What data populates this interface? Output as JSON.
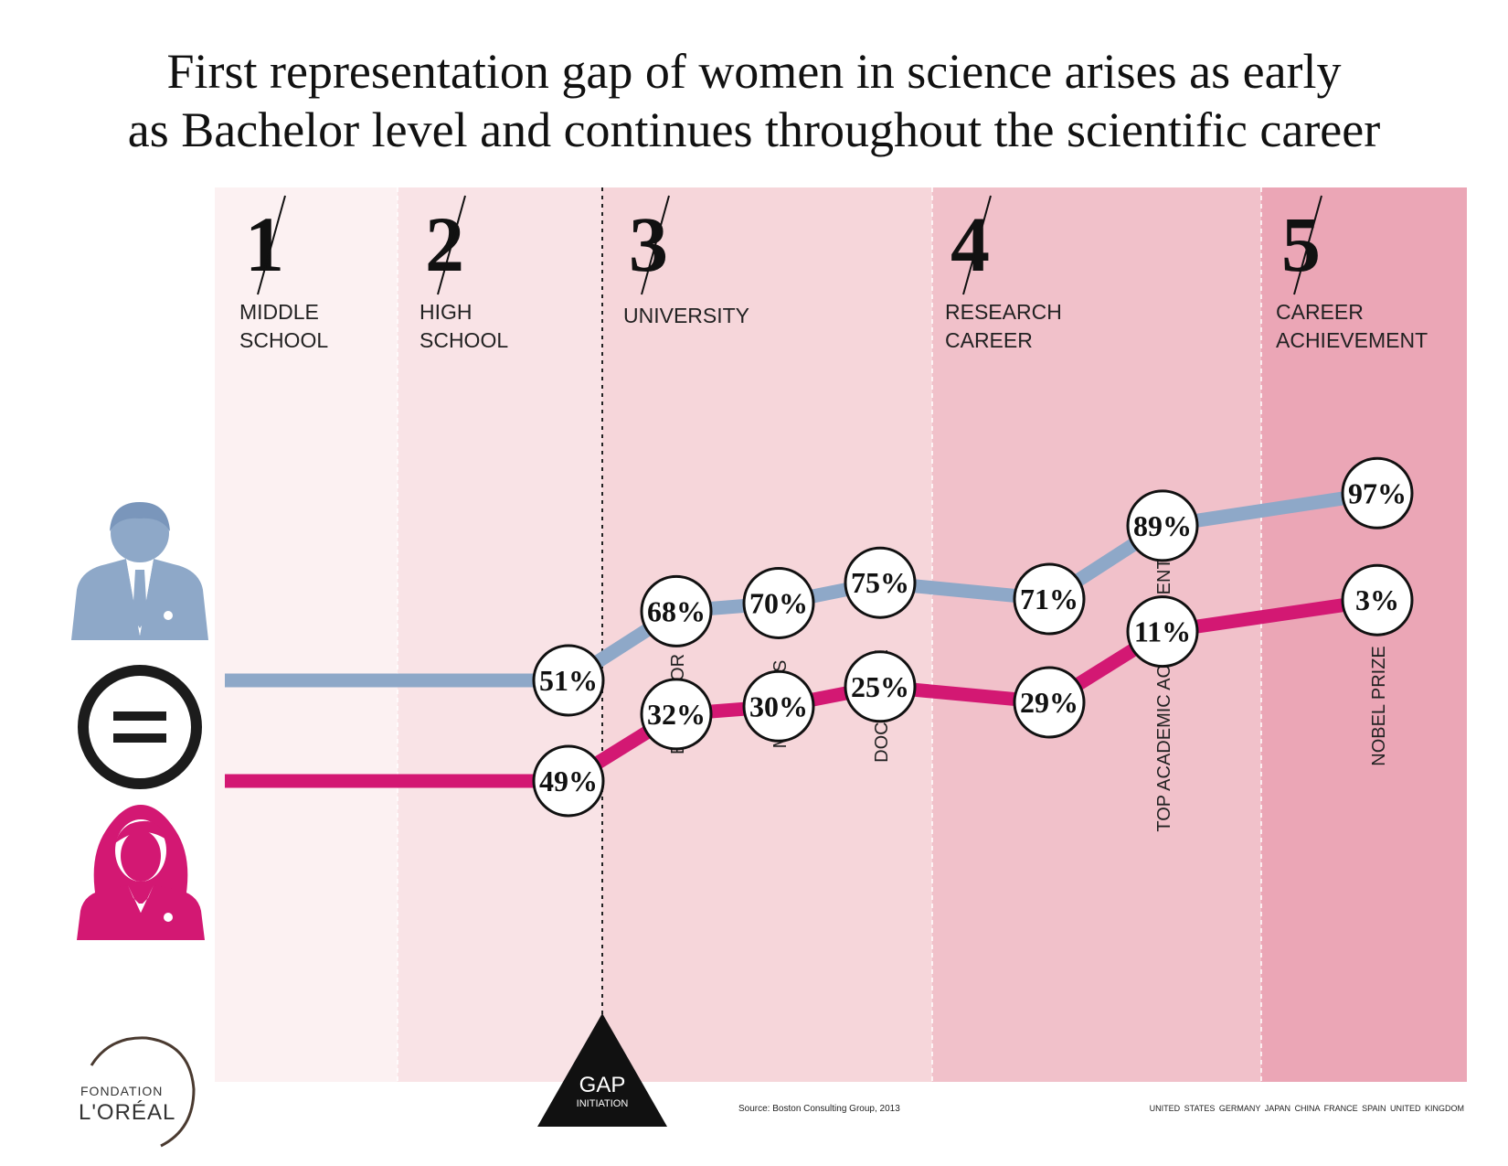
{
  "title_lines": [
    "First representation gap of women in science arises as early",
    "as Bachelor level and continues throughout the scientific career"
  ],
  "stages": [
    {
      "number": "1",
      "label": [
        "MIDDLE",
        "SCHOOL"
      ]
    },
    {
      "number": "2",
      "label": [
        "HIGH",
        "SCHOOL"
      ]
    },
    {
      "number": "3",
      "label": [
        "UNIVERSITY"
      ]
    },
    {
      "number": "4",
      "label": [
        "RESEARCH",
        "CAREER"
      ]
    },
    {
      "number": "5",
      "label": [
        "CAREER",
        "ACHIEVEMENT"
      ]
    }
  ],
  "gap_marker": {
    "line1": "GAP",
    "line2": "INITIATION"
  },
  "source": "Source: Boston Consulting Group, 2013",
  "countries": [
    "UNITED STATES",
    "GERMANY",
    "JAPAN",
    "CHINA",
    "FRANCE",
    "SPAIN",
    "UNITED KINGDOM"
  ],
  "logo": {
    "line1": "FONDATION",
    "line2": "L'ORÉAL"
  },
  "icons": {
    "men": "man-icon",
    "equal": "equal-sign-icon",
    "women": "woman-icon",
    "gap": "triangle-icon"
  },
  "colors": {
    "men": "#8ea8c8",
    "women": "#d31873",
    "stage_backgrounds": [
      "#fcf1f2",
      "#f9e3e6",
      "#f6d6da",
      "#f1c1ca",
      "#eba6b6"
    ]
  },
  "chart_data": {
    "type": "line",
    "categories": [
      "",
      "",
      "",
      "BACHELOR",
      "MASTERS",
      "DOCTORATE",
      "",
      "TOP ACADEMIC ACHIEVEMENT",
      "NOBEL PRIZE"
    ],
    "stage_of_category": [
      1,
      2,
      2,
      3,
      3,
      3,
      4,
      4,
      5
    ],
    "series": [
      {
        "key": "men",
        "values": [
          51,
          51,
          51,
          68,
          70,
          75,
          71,
          89,
          97
        ],
        "labels": [
          "",
          "",
          "51%",
          "68%",
          "70%",
          "75%",
          "71%",
          "89%",
          "97%"
        ]
      },
      {
        "key": "women",
        "values": [
          49,
          49,
          49,
          32,
          30,
          25,
          29,
          11,
          3
        ],
        "labels": [
          "",
          "",
          "49%",
          "32%",
          "30%",
          "25%",
          "29%",
          "11%",
          "3%"
        ]
      }
    ]
  }
}
